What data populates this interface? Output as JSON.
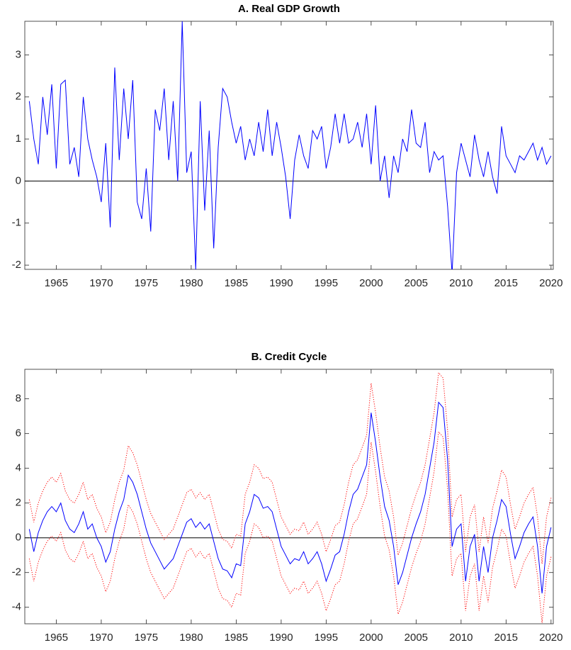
{
  "chart_data": [
    {
      "type": "line",
      "title": "A. Real GDP Growth",
      "x": [
        1962,
        1962.5,
        1963,
        1963.5,
        1964,
        1964.5,
        1965,
        1965.5,
        1966,
        1966.5,
        1967,
        1967.5,
        1968,
        1968.5,
        1969,
        1969.5,
        1970,
        1970.5,
        1971,
        1971.5,
        1972,
        1972.5,
        1973,
        1973.5,
        1974,
        1974.5,
        1975,
        1975.5,
        1976,
        1976.5,
        1977,
        1977.5,
        1978,
        1978.5,
        1979,
        1979.5,
        1980,
        1980.5,
        1981,
        1981.5,
        1982,
        1982.5,
        1983,
        1983.5,
        1984,
        1984.5,
        1985,
        1985.5,
        1986,
        1986.5,
        1987,
        1987.5,
        1988,
        1988.5,
        1989,
        1989.5,
        1990,
        1990.5,
        1991,
        1991.5,
        1992,
        1992.5,
        1993,
        1993.5,
        1994,
        1994.5,
        1995,
        1995.5,
        1996,
        1996.5,
        1997,
        1997.5,
        1998,
        1998.5,
        1999,
        1999.5,
        2000,
        2000.5,
        2001,
        2001.5,
        2002,
        2002.5,
        2003,
        2003.5,
        2004,
        2004.5,
        2005,
        2005.5,
        2006,
        2006.5,
        2007,
        2007.5,
        2008,
        2008.5,
        2009,
        2009.5,
        2010,
        2010.5,
        2011,
        2011.5,
        2012,
        2012.5,
        2013,
        2013.5,
        2014,
        2014.5,
        2015,
        2015.5,
        2016,
        2016.5,
        2017,
        2017.5,
        2018,
        2018.5,
        2019,
        2019.5,
        2020
      ],
      "series": [
        {
          "color": "#0000ff",
          "style": "solid",
          "values": [
            1.9,
            1.0,
            0.4,
            2.0,
            1.1,
            2.3,
            0.3,
            2.3,
            2.4,
            0.4,
            0.8,
            0.1,
            2.0,
            1.0,
            0.5,
            0.1,
            -0.5,
            0.9,
            -1.1,
            2.7,
            0.5,
            2.2,
            1.0,
            2.4,
            -0.5,
            -0.9,
            0.3,
            -1.2,
            1.7,
            1.2,
            2.2,
            0.5,
            1.9,
            0.0,
            3.8,
            0.2,
            0.7,
            -2.1,
            1.9,
            -0.7,
            1.2,
            -1.6,
            0.8,
            2.2,
            2.0,
            1.4,
            0.9,
            1.3,
            0.5,
            1.0,
            0.6,
            1.4,
            0.7,
            1.7,
            0.6,
            1.4,
            0.8,
            0.1,
            -0.9,
            0.5,
            1.1,
            0.6,
            0.3,
            1.2,
            1.0,
            1.3,
            0.3,
            0.8,
            1.6,
            0.9,
            1.6,
            0.9,
            1.0,
            1.4,
            0.8,
            1.6,
            0.4,
            1.8,
            0.0,
            0.6,
            -0.4,
            0.6,
            0.2,
            1.0,
            0.7,
            1.7,
            0.9,
            0.8,
            1.4,
            0.2,
            0.7,
            0.5,
            0.6,
            -0.6,
            -2.2,
            0.2,
            0.9,
            0.5,
            0.1,
            1.1,
            0.5,
            0.1,
            0.7,
            0.1,
            -0.3,
            1.3,
            0.6,
            0.4,
            0.2,
            0.6,
            0.5,
            0.7,
            0.9,
            0.5,
            0.8,
            0.4,
            0.6
          ]
        }
      ],
      "xlim": [
        1961.5,
        2020.25
      ],
      "xticks": [
        1965,
        1970,
        1975,
        1980,
        1985,
        1990,
        1995,
        2000,
        2005,
        2010,
        2015,
        2020
      ],
      "ylim": [
        -2.1,
        3.8
      ],
      "yticks": [
        -2,
        -1,
        0,
        1,
        2,
        3
      ],
      "zero_line": true,
      "grid": false
    },
    {
      "type": "line",
      "title": "B. Credit Cycle",
      "x": [
        1962,
        1962.5,
        1963,
        1963.5,
        1964,
        1964.5,
        1965,
        1965.5,
        1966,
        1966.5,
        1967,
        1967.5,
        1968,
        1968.5,
        1969,
        1969.5,
        1970,
        1970.5,
        1971,
        1971.5,
        1972,
        1972.5,
        1973,
        1973.5,
        1974,
        1974.5,
        1975,
        1975.5,
        1976,
        1976.5,
        1977,
        1977.5,
        1978,
        1978.5,
        1979,
        1979.5,
        1980,
        1980.5,
        1981,
        1981.5,
        1982,
        1982.5,
        1983,
        1983.5,
        1984,
        1984.5,
        1985,
        1985.5,
        1986,
        1986.5,
        1987,
        1987.5,
        1988,
        1988.5,
        1989,
        1989.5,
        1990,
        1990.5,
        1991,
        1991.5,
        1992,
        1992.5,
        1993,
        1993.5,
        1994,
        1994.5,
        1995,
        1995.5,
        1996,
        1996.5,
        1997,
        1997.5,
        1998,
        1998.5,
        1999,
        1999.5,
        2000,
        2000.5,
        2001,
        2001.5,
        2002,
        2002.5,
        2003,
        2003.5,
        2004,
        2004.5,
        2005,
        2005.5,
        2006,
        2006.5,
        2007,
        2007.5,
        2008,
        2008.5,
        2009,
        2009.5,
        2010,
        2010.5,
        2011,
        2011.5,
        2012,
        2012.5,
        2013,
        2013.5,
        2014,
        2014.5,
        2015,
        2015.5,
        2016,
        2016.5,
        2017,
        2017.5,
        2018,
        2018.5,
        2019,
        2019.5,
        2020
      ],
      "series": [
        {
          "color": "#ff0000",
          "style": "dotted",
          "values": [
            2.2,
            0.9,
            2.0,
            2.7,
            3.2,
            3.5,
            3.2,
            3.7,
            2.7,
            2.2,
            2.0,
            2.5,
            3.2,
            2.2,
            2.5,
            1.7,
            1.2,
            0.3,
            0.9,
            2.2,
            3.2,
            3.9,
            5.3,
            4.9,
            4.2,
            3.2,
            2.2,
            1.4,
            0.9,
            0.4,
            -0.1,
            0.2,
            0.5,
            1.2,
            1.9,
            2.6,
            2.8,
            2.3,
            2.6,
            2.2,
            2.5,
            1.5,
            0.5,
            -0.1,
            -0.2,
            -0.6,
            0.2,
            0.1,
            2.5,
            3.2,
            4.2,
            4.0,
            3.4,
            3.5,
            3.2,
            2.2,
            1.2,
            0.7,
            0.2,
            0.5,
            0.4,
            0.9,
            0.2,
            0.5,
            0.9,
            0.2,
            -0.8,
            -0.1,
            0.7,
            0.9,
            1.9,
            3.2,
            4.2,
            4.5,
            5.2,
            5.9,
            8.9,
            7.2,
            5.2,
            3.5,
            2.7,
            1.2,
            -1.0,
            -0.3,
            0.7,
            1.7,
            2.5,
            3.2,
            4.2,
            5.7,
            7.2,
            9.5,
            9.2,
            6.2,
            1.2,
            2.2,
            2.5,
            -0.8,
            1.2,
            1.9,
            -0.8,
            1.2,
            -0.3,
            1.7,
            2.7,
            3.9,
            3.5,
            1.9,
            0.5,
            1.2,
            2.0,
            2.5,
            2.9,
            1.2,
            -1.5,
            1.2,
            2.3
          ]
        },
        {
          "color": "#ff0000",
          "style": "dotted",
          "values": [
            -1.2,
            -2.5,
            -1.4,
            -0.7,
            -0.2,
            0.1,
            -0.2,
            0.3,
            -0.7,
            -1.2,
            -1.4,
            -0.9,
            -0.2,
            -1.2,
            -0.9,
            -1.7,
            -2.2,
            -3.1,
            -2.5,
            -1.2,
            -0.2,
            0.5,
            1.9,
            1.5,
            0.8,
            -0.2,
            -1.2,
            -2.0,
            -2.5,
            -3.0,
            -3.5,
            -3.2,
            -2.9,
            -2.2,
            -1.5,
            -0.8,
            -0.6,
            -1.1,
            -0.8,
            -1.2,
            -0.9,
            -1.9,
            -2.9,
            -3.5,
            -3.6,
            -4.0,
            -3.2,
            -3.3,
            -0.9,
            -0.2,
            0.8,
            0.6,
            0.0,
            0.1,
            -0.2,
            -1.2,
            -2.2,
            -2.7,
            -3.2,
            -2.9,
            -3.0,
            -2.5,
            -3.2,
            -2.9,
            -2.5,
            -3.2,
            -4.2,
            -3.5,
            -2.7,
            -2.5,
            -1.5,
            -0.2,
            0.8,
            1.1,
            1.8,
            2.5,
            5.5,
            3.8,
            1.8,
            0.1,
            -0.7,
            -2.2,
            -4.4,
            -3.7,
            -2.7,
            -1.7,
            -0.9,
            -0.2,
            0.8,
            2.3,
            3.8,
            6.1,
            5.8,
            2.8,
            -2.2,
            -1.2,
            -0.9,
            -4.2,
            -2.2,
            -1.5,
            -4.2,
            -2.2,
            -3.7,
            -1.7,
            -0.7,
            0.5,
            0.1,
            -1.5,
            -2.9,
            -2.2,
            -1.4,
            -0.9,
            -0.5,
            -2.2,
            -4.9,
            -2.2,
            -1.1
          ]
        },
        {
          "color": "#0000ff",
          "style": "solid",
          "values": [
            0.5,
            -0.8,
            0.3,
            1.0,
            1.5,
            1.8,
            1.5,
            2.0,
            1.0,
            0.5,
            0.3,
            0.8,
            1.5,
            0.5,
            0.8,
            0.0,
            -0.5,
            -1.4,
            -0.8,
            0.5,
            1.5,
            2.2,
            3.6,
            3.2,
            2.5,
            1.5,
            0.5,
            -0.3,
            -0.8,
            -1.3,
            -1.8,
            -1.5,
            -1.2,
            -0.5,
            0.2,
            0.9,
            1.1,
            0.6,
            0.9,
            0.5,
            0.8,
            -0.2,
            -1.2,
            -1.8,
            -1.9,
            -2.3,
            -1.5,
            -1.6,
            0.8,
            1.5,
            2.5,
            2.3,
            1.7,
            1.8,
            1.5,
            0.5,
            -0.5,
            -1.0,
            -1.5,
            -1.2,
            -1.3,
            -0.8,
            -1.5,
            -1.2,
            -0.8,
            -1.5,
            -2.5,
            -1.8,
            -1.0,
            -0.8,
            0.2,
            1.5,
            2.5,
            2.8,
            3.5,
            4.2,
            7.2,
            5.5,
            3.5,
            1.8,
            1.0,
            -0.5,
            -2.7,
            -2.0,
            -1.0,
            0.0,
            0.8,
            1.5,
            2.5,
            4.0,
            5.5,
            7.8,
            7.5,
            4.5,
            -0.5,
            0.5,
            0.8,
            -2.5,
            -0.5,
            0.2,
            -2.5,
            -0.5,
            -2.0,
            0.0,
            1.0,
            2.2,
            1.8,
            0.2,
            -1.2,
            -0.5,
            0.3,
            0.8,
            1.2,
            -0.5,
            -3.2,
            -0.5,
            0.6
          ]
        }
      ],
      "xlim": [
        1961.5,
        2020.25
      ],
      "xticks": [
        1965,
        1970,
        1975,
        1980,
        1985,
        1990,
        1995,
        2000,
        2005,
        2010,
        2015,
        2020
      ],
      "ylim": [
        -4.95,
        9.7
      ],
      "yticks": [
        -4,
        -2,
        0,
        2,
        4,
        6,
        8
      ],
      "zero_line": true,
      "grid": false
    }
  ]
}
